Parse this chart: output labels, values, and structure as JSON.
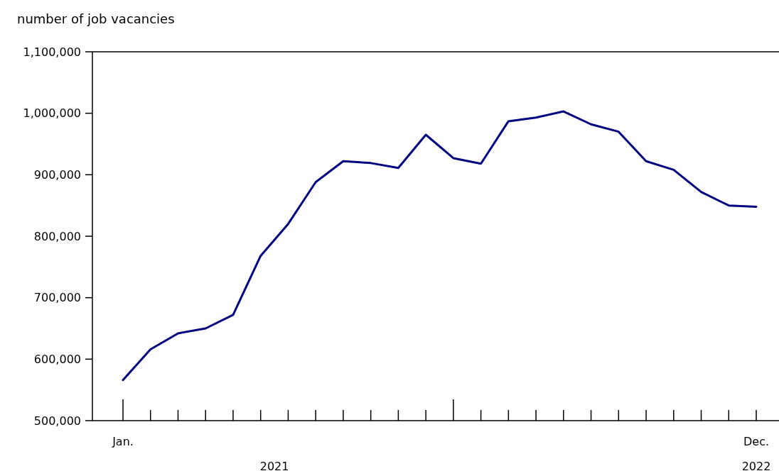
{
  "chart_data": {
    "type": "line",
    "ylabel": "number of job vacancies",
    "categories": [
      "Jan.",
      null,
      null,
      null,
      null,
      null,
      null,
      null,
      null,
      null,
      null,
      null,
      null,
      null,
      null,
      null,
      null,
      null,
      null,
      null,
      null,
      null,
      null,
      "Dec."
    ],
    "series": [
      {
        "color": "#000080",
        "values": [
          566000,
          616000,
          642000,
          650000,
          672000,
          768000,
          820000,
          888000,
          922000,
          919000,
          911000,
          965000,
          927000,
          918000,
          987000,
          993000,
          1003000,
          982000,
          970000,
          922000,
          908000,
          872000,
          850000,
          848000
        ]
      }
    ],
    "annotations": [
      "2021",
      "2022"
    ],
    "ylim": [
      500000,
      1100000
    ],
    "yticks": [
      {
        "value": 500000,
        "label": "500,000"
      },
      {
        "value": 600000,
        "label": "600,000"
      },
      {
        "value": 700000,
        "label": "700,000"
      },
      {
        "value": 800000,
        "label": "800,000"
      },
      {
        "value": 900000,
        "label": "900,000"
      },
      {
        "value": 1000000,
        "label": "1,000,000"
      },
      {
        "value": 1100000,
        "label": "1,100,000"
      }
    ],
    "grid": false,
    "marker": "none",
    "line_style": "solid"
  }
}
